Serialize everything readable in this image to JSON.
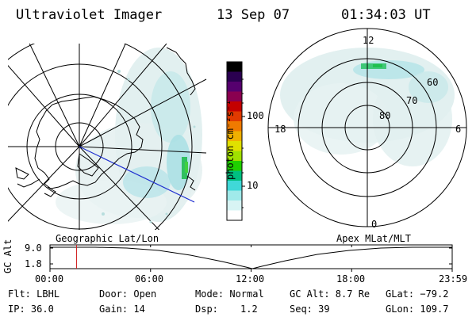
{
  "header": {
    "instrument": "Ultraviolet Imager",
    "date": "13 Sep 07",
    "time": "01:34:03 UT"
  },
  "left_map": {
    "caption": "Geographic Lat/Lon"
  },
  "right_map": {
    "caption": "Apex MLat/MLT",
    "mlt_labels": {
      "top": "12",
      "left": "18",
      "right": "6",
      "bottom": "0"
    },
    "lat_labels": [
      "80",
      "70",
      "60"
    ]
  },
  "colorbar": {
    "unit_label": "photon cm⁻²s⁻¹",
    "tick_labels": [
      "100",
      "10"
    ],
    "colors": [
      "#000000",
      "#2a0050",
      "#55006e",
      "#8a0050",
      "#c40000",
      "#e03a00",
      "#f07a00",
      "#f0b000",
      "#e0e000",
      "#a0e000",
      "#20d000",
      "#00c080",
      "#40d8d8",
      "#a0eaea",
      "#d8f4f4",
      "#ffffff"
    ]
  },
  "timeline": {
    "axis_label": "GC Alt",
    "y_ticks": [
      "9.0",
      "1.8"
    ],
    "x_ticks": [
      "00:00",
      "06:00",
      "12:00",
      "18:00",
      "23:59"
    ],
    "current_time_fraction": 0.066
  },
  "info": {
    "flt": "Flt: LBHL",
    "door": "Door: Open",
    "mode": "Mode: Normal",
    "gcalt": "GC Alt: 8.7 Re",
    "glat": "GLat: −79.2",
    "ip": "IP: 36.0",
    "gain": "Gain: 14",
    "dsp_label": "Dsp:",
    "dsp_value": "1.2",
    "seq": "Seq: 39",
    "glon": "GLon: 109.7"
  }
}
